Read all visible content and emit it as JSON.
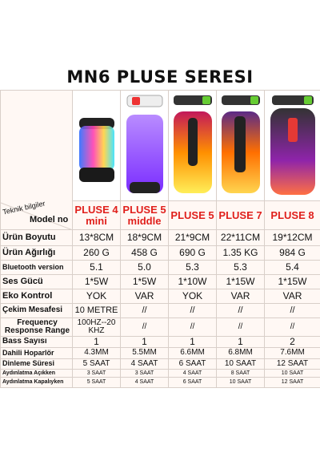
{
  "header": {
    "title": "MN6 PLUSE SERESI"
  },
  "table": {
    "corner_top": "Teknik bilgiler",
    "corner_bottom": "Model no",
    "models": [
      "PLUSE 4 mini",
      "PLUSE 5 middle",
      "PLUSE 5",
      "PLUSE 7",
      "PLUSE 8"
    ],
    "rows": [
      [
        "Ürün Boyutu",
        "13*8CM",
        "18*9CM",
        "21*9CM",
        "22*11CM",
        "19*12CM"
      ],
      [
        "Ürün Ağırlığı",
        "260 G",
        "458 G",
        "690 G",
        "1.35 KG",
        "984 G"
      ],
      [
        "Bluetooth version",
        "5.1",
        "5.0",
        "5.3",
        "5.3",
        "5.4"
      ],
      [
        "Ses Gücü",
        "1*5W",
        "1*5W",
        "1*10W",
        "1*15W",
        "1*15W"
      ],
      [
        "Eko Kontrol",
        "YOK",
        "VAR",
        "YOK",
        "VAR",
        "VAR"
      ],
      [
        "Çekim Mesafesi",
        "10 METRE",
        "//",
        "//",
        "//",
        "//"
      ],
      [
        "Frequency Response Range",
        "100HZ--20KHZ",
        "//",
        "//",
        "//",
        "//"
      ],
      [
        "Bass Sayısı",
        "1",
        "1",
        "1",
        "1",
        "2"
      ],
      [
        "Dahili Hoparlör",
        "4.3MM",
        "5.5MM",
        "6.6MM",
        "6.8MM",
        "7.6MM"
      ],
      [
        "Dinleme Süresi",
        "5 SAAT",
        "4 SAAT",
        "6 SAAT",
        "10 SAAT",
        "12 SAAT"
      ],
      [
        "Aydınlatma Açıkken",
        "3 SAAT",
        "3 SAAT",
        "4 SAAT",
        "8 SAAT",
        "10 SAAT"
      ],
      [
        "Aydınlatma Kapalıyken",
        "5 SAAT",
        "4 SAAT",
        "6 SAAT",
        "10 SAAT",
        "12 SAAT"
      ]
    ]
  }
}
